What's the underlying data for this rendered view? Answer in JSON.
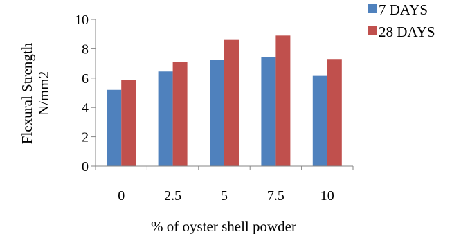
{
  "chart_data": {
    "type": "bar",
    "title": "",
    "xlabel": "% of oyster shell powder",
    "ylabel_lines": [
      "Flexural Strength",
      "N/mm2"
    ],
    "categories": [
      "0",
      "2.5",
      "5",
      "7.5",
      "10"
    ],
    "series": [
      {
        "name": "7 DAYS",
        "color": "#4F81BD",
        "values": [
          5.2,
          6.45,
          7.25,
          7.45,
          6.15
        ]
      },
      {
        "name": "28 DAYS",
        "color": "#C0504D",
        "values": [
          5.85,
          7.1,
          8.6,
          8.9,
          7.3
        ]
      }
    ],
    "ylim": [
      0,
      10
    ],
    "yticks": [
      0,
      2,
      4,
      6,
      8,
      10
    ],
    "grid": false,
    "legend_position": "top-right"
  }
}
